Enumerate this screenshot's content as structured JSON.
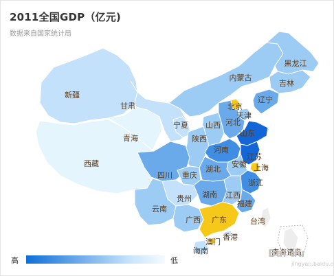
{
  "title": "2011全国GDP（亿元)",
  "subtitle": "数据来自国家统计局",
  "legend": {
    "high": "高",
    "low": "低"
  },
  "colors": {
    "darkest": "#1466d6",
    "dark": "#3f8ee4",
    "medium": "#6aaaeb",
    "light": "#9ccbf4",
    "lighter": "#c3e1fa",
    "lightest": "#e4f5fd",
    "highlight": "#f6c81a",
    "border": "#ffffff",
    "label": "#5a3a1a"
  },
  "regions": [
    {
      "name": "新疆",
      "level": "lighter"
    },
    {
      "name": "西藏",
      "level": "lightest"
    },
    {
      "name": "青海",
      "level": "lightest"
    },
    {
      "name": "甘肃",
      "level": "lighter"
    },
    {
      "name": "宁夏",
      "level": "lighter"
    },
    {
      "name": "内蒙古",
      "level": "light"
    },
    {
      "name": "黑龙江",
      "level": "light"
    },
    {
      "name": "吉林",
      "level": "light"
    },
    {
      "name": "辽宁",
      "level": "medium"
    },
    {
      "name": "北京",
      "level": "highlight"
    },
    {
      "name": "天津",
      "level": "light"
    },
    {
      "name": "河北",
      "level": "medium"
    },
    {
      "name": "山西",
      "level": "light"
    },
    {
      "name": "山东",
      "level": "darkest"
    },
    {
      "name": "陕西",
      "level": "light"
    },
    {
      "name": "河南",
      "level": "dark"
    },
    {
      "name": "江苏",
      "level": "darkest"
    },
    {
      "name": "安徽",
      "level": "light"
    },
    {
      "name": "上海",
      "level": "highlight"
    },
    {
      "name": "四川",
      "level": "medium"
    },
    {
      "name": "重庆",
      "level": "light"
    },
    {
      "name": "湖北",
      "level": "medium"
    },
    {
      "name": "浙江",
      "level": "dark"
    },
    {
      "name": "贵州",
      "level": "lighter"
    },
    {
      "name": "湖南",
      "level": "medium"
    },
    {
      "name": "江西",
      "level": "light"
    },
    {
      "name": "云南",
      "level": "light"
    },
    {
      "name": "福建",
      "level": "medium"
    },
    {
      "name": "台湾",
      "level": "none"
    },
    {
      "name": "广西",
      "level": "light"
    },
    {
      "name": "广东",
      "level": "highlight"
    },
    {
      "name": "香港",
      "level": "lighter"
    },
    {
      "name": "澳门",
      "level": "highlight"
    },
    {
      "name": "海南",
      "level": "lighter"
    },
    {
      "name": "南海诸岛",
      "level": "none"
    }
  ],
  "watermark": {
    "brand": "Bai du",
    "sub": "jingyan.baidu.com"
  }
}
